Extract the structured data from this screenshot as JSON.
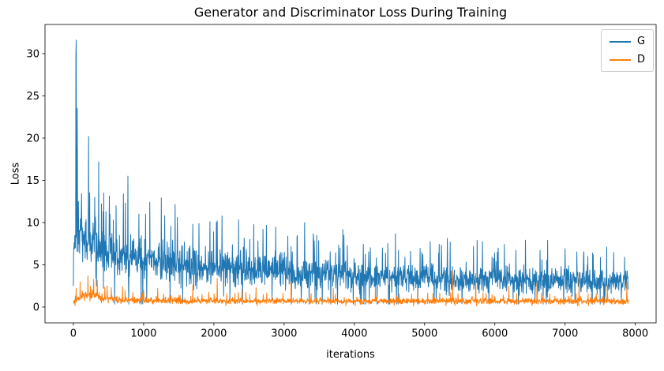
{
  "chart_data": {
    "type": "line",
    "title": "Generator and Discriminator Loss During Training",
    "xlabel": "iterations",
    "ylabel": "Loss",
    "xlim": [
      -404,
      8296
    ],
    "ylim": [
      -1.87,
      33.45
    ],
    "xticks": [
      0,
      1000,
      2000,
      3000,
      4000,
      5000,
      6000,
      7000,
      8000
    ],
    "yticks": [
      0,
      5,
      10,
      15,
      20,
      25,
      30
    ],
    "grid": false,
    "background": "#ffffff",
    "spine_color": "#000000",
    "legend": {
      "position": "upper right",
      "entries": [
        {
          "label": "G",
          "color": "#1f77b4"
        },
        {
          "label": "D",
          "color": "#ff7f0e"
        }
      ]
    },
    "x_start": 0,
    "x_end": 7900,
    "step": 4,
    "series": [
      {
        "name": "G",
        "color": "#1f77b4",
        "seed": 1337,
        "line_width": 1,
        "clamp_min": 0.35,
        "spike_prob": 0.055,
        "spike_gain": 2.0,
        "dip_prob": 0.035,
        "mean_anchors": [
          [
            0,
            6.5
          ],
          [
            50,
            9.0
          ],
          [
            200,
            7.8
          ],
          [
            500,
            6.4
          ],
          [
            1000,
            5.6
          ],
          [
            2000,
            4.8
          ],
          [
            3000,
            4.2
          ],
          [
            4200,
            3.7
          ],
          [
            5500,
            3.3
          ],
          [
            7900,
            3.0
          ]
        ],
        "spread_anchors": [
          [
            0,
            2.5
          ],
          [
            150,
            3.4
          ],
          [
            600,
            3.0
          ],
          [
            1500,
            2.7
          ],
          [
            2800,
            2.2
          ],
          [
            4500,
            1.9
          ],
          [
            7900,
            1.6
          ]
        ],
        "peaks": [
          [
            0,
            2.5
          ],
          [
            24,
            8.5
          ],
          [
            36,
            29.6
          ],
          [
            40,
            31.6
          ],
          [
            48,
            19.0
          ],
          [
            56,
            23.5
          ],
          [
            72,
            12.5
          ],
          [
            216,
            20.2
          ],
          [
            304,
            13.0
          ],
          [
            360,
            17.2
          ],
          [
            432,
            13.5
          ],
          [
            520,
            11.0
          ],
          [
            776,
            15.5
          ],
          [
            932,
            11.0
          ],
          [
            1088,
            12.4
          ],
          [
            1300,
            10.8
          ],
          [
            1480,
            10.6
          ],
          [
            1700,
            9.8
          ],
          [
            2048,
            10.2
          ],
          [
            2352,
            10.3
          ],
          [
            2700,
            9.2
          ],
          [
            3052,
            8.4
          ],
          [
            3420,
            8.1
          ],
          [
            3900,
            7.3
          ],
          [
            4400,
            7.0
          ],
          [
            4800,
            6.6
          ],
          [
            5200,
            6.4
          ],
          [
            5748,
            7.9
          ],
          [
            6300,
            6.7
          ],
          [
            7000,
            6.9
          ],
          [
            7400,
            6.2
          ],
          [
            7848,
            5.9
          ]
        ]
      },
      {
        "name": "D",
        "color": "#ff7f0e",
        "seed": 2024,
        "line_width": 1,
        "clamp_min": 0.15,
        "spike_prob": 0.05,
        "spike_gain": 1.8,
        "dip_prob": 0.008,
        "mean_anchors": [
          [
            0,
            0.55
          ],
          [
            120,
            1.35
          ],
          [
            250,
            1.45
          ],
          [
            450,
            1.0
          ],
          [
            800,
            0.8
          ],
          [
            1500,
            0.75
          ],
          [
            3000,
            0.7
          ],
          [
            5000,
            0.68
          ],
          [
            7900,
            0.72
          ]
        ],
        "spread_anchors": [
          [
            0,
            0.35
          ],
          [
            250,
            0.8
          ],
          [
            600,
            0.5
          ],
          [
            1500,
            0.42
          ],
          [
            4000,
            0.38
          ],
          [
            7900,
            0.42
          ]
        ],
        "peaks": [
          [
            40,
            2.2
          ],
          [
            96,
            3.0
          ],
          [
            208,
            3.7
          ],
          [
            340,
            3.2
          ],
          [
            480,
            2.5
          ],
          [
            700,
            2.4
          ],
          [
            1000,
            2.0
          ],
          [
            1200,
            2.2
          ],
          [
            1700,
            2.6
          ],
          [
            2048,
            3.4
          ],
          [
            2400,
            2.1
          ],
          [
            2600,
            2.3
          ],
          [
            3100,
            3.0
          ],
          [
            3700,
            2.2
          ],
          [
            4300,
            2.4
          ],
          [
            4900,
            2.2
          ],
          [
            5400,
            4.3
          ],
          [
            5728,
            4.0
          ],
          [
            6200,
            2.5
          ],
          [
            6600,
            2.9
          ],
          [
            7200,
            4.1
          ],
          [
            7600,
            2.6
          ],
          [
            7880,
            3.0
          ]
        ]
      }
    ]
  }
}
